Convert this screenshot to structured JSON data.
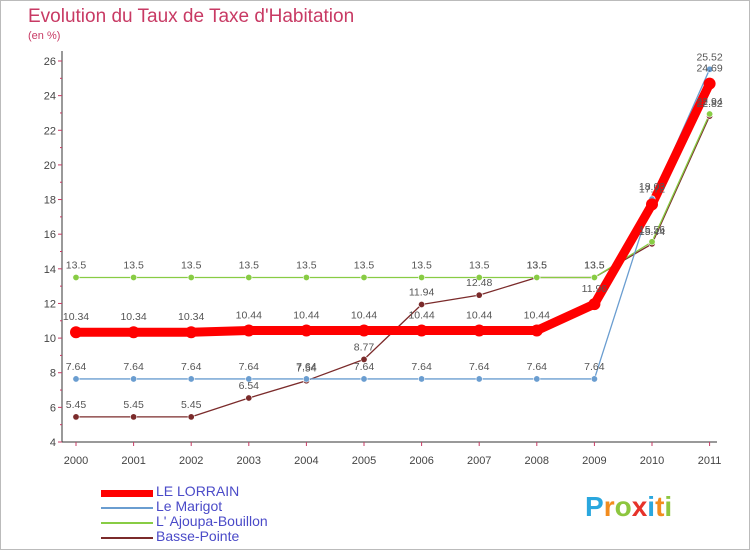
{
  "title": "Evolution du Taux de Taxe d'Habitation",
  "unit_label": "(en %)",
  "logo": {
    "letters": [
      "P",
      "r",
      "o",
      "x",
      "i",
      "t",
      "i"
    ],
    "colors": [
      "#2aa7de",
      "#f28c1e",
      "#8dc63f",
      "#e6332a",
      "#2aa7de",
      "#f28c1e",
      "#8dc63f"
    ]
  },
  "chart_data": {
    "type": "line",
    "title": "Evolution du Taux de Taxe d'Habitation",
    "ylabel": "(en %)",
    "xlabel": "",
    "x": [
      "2000",
      "2001",
      "2002",
      "2003",
      "2004",
      "2005",
      "2006",
      "2007",
      "2008",
      "2009",
      "2010",
      "2011"
    ],
    "ylim": [
      4,
      26
    ],
    "yticks": [
      4,
      6,
      8,
      10,
      12,
      14,
      16,
      18,
      20,
      22,
      24,
      26
    ],
    "grid": false,
    "legend_position": "bottom-left",
    "series": [
      {
        "name": "LE LORRAIN",
        "color": "#ff0000",
        "values": [
          10.34,
          10.34,
          10.34,
          10.44,
          10.44,
          10.44,
          10.44,
          10.44,
          10.44,
          11.96,
          17.72,
          24.69
        ],
        "labels": [
          "10.34",
          "10.34",
          "10.34",
          "10.44",
          "10.44",
          "10.44",
          "10.44",
          "10.44",
          "10.44",
          "11.96",
          "17.72",
          "24.69"
        ]
      },
      {
        "name": "Le Marigot",
        "color": "#6a9dd0",
        "values": [
          7.64,
          7.64,
          7.64,
          7.64,
          7.64,
          7.64,
          7.64,
          7.64,
          7.64,
          7.64,
          18.03,
          25.52
        ],
        "labels": [
          "7.64",
          "7.64",
          "7.64",
          "7.64",
          "7.64",
          "7.64",
          "7.64",
          "7.64",
          "7.64",
          "7.64",
          "18.03",
          "25.52"
        ]
      },
      {
        "name": "L' Ajoupa-Bouillon",
        "color": "#88cc44",
        "values": [
          13.5,
          13.5,
          13.5,
          13.5,
          13.5,
          13.5,
          13.5,
          13.5,
          13.5,
          13.5,
          15.56,
          22.94
        ],
        "labels": [
          "13.5",
          "13.5",
          "13.5",
          "13.5",
          "13.5",
          "13.5",
          "13.5",
          "13.5",
          "13.5",
          "13.5",
          "15.56",
          "22.94"
        ]
      },
      {
        "name": "Basse-Pointe",
        "color": "#7b2b2b",
        "values": [
          5.45,
          5.45,
          5.45,
          6.54,
          7.54,
          8.77,
          11.94,
          12.48,
          13.5,
          13.5,
          15.44,
          22.82
        ],
        "labels": [
          "5.45",
          "5.45",
          "5.45",
          "6.54",
          "7.54",
          "8.77",
          "11.94",
          "12.48",
          "13.5",
          "13.5",
          "15.44",
          "22.82"
        ]
      }
    ]
  }
}
